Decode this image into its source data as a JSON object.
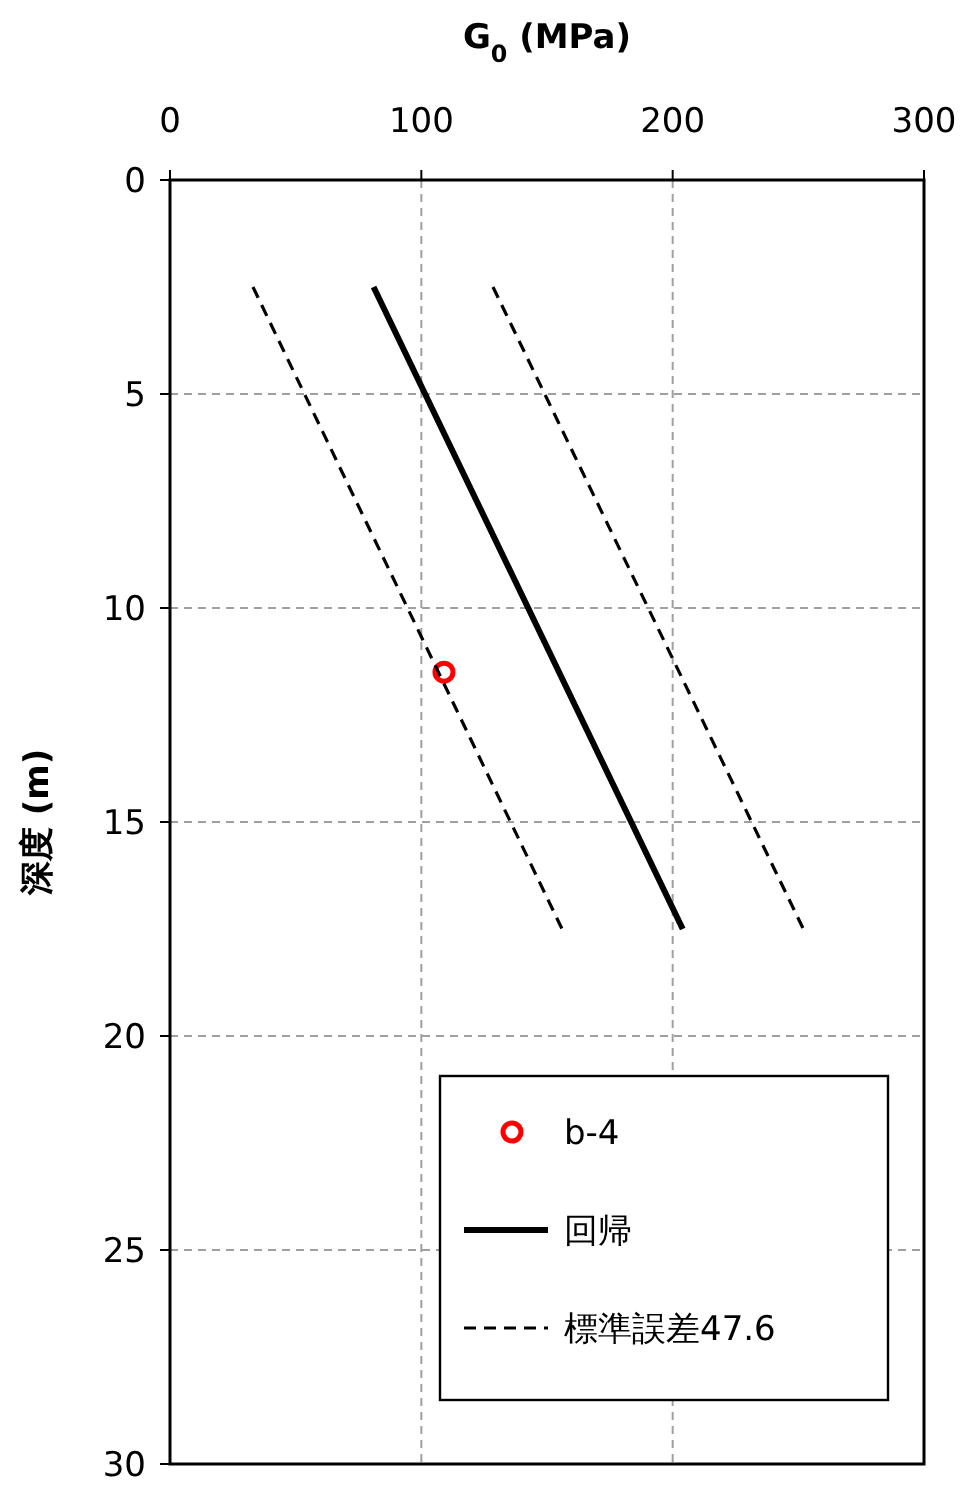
{
  "chart_data": {
    "type": "scatter",
    "xlabel": "G$_{0}$ (MPa)",
    "ylabel": "深度 (m)",
    "xlim": [
      0,
      300
    ],
    "xticks": [
      0,
      100,
      200,
      300
    ],
    "ylim": [
      30,
      0
    ],
    "yticks": [
      0,
      5,
      10,
      15,
      20,
      25,
      30
    ],
    "grid": true,
    "legend": "bottom right",
    "series": [
      {
        "name": "b-4",
        "marker": "circle",
        "color": "#ff0000",
        "x": [
          109
        ],
        "values": [
          11.5
        ]
      },
      {
        "name": "回帰",
        "type": "line",
        "line_style": "solid",
        "color": "#000000",
        "x": [
          81,
          204
        ],
        "values": [
          2.5,
          17.5
        ]
      },
      {
        "name": "標準誤差47.6",
        "type": "line",
        "line_style": "dashed",
        "color": "#000000",
        "x": [
          33,
          156
        ],
        "values": [
          2.5,
          17.5
        ]
      },
      {
        "type": "line",
        "line_style": "dashed",
        "color": "#000000",
        "x": [
          128.5,
          252
        ],
        "values": [
          2.5,
          17.5
        ]
      }
    ]
  }
}
